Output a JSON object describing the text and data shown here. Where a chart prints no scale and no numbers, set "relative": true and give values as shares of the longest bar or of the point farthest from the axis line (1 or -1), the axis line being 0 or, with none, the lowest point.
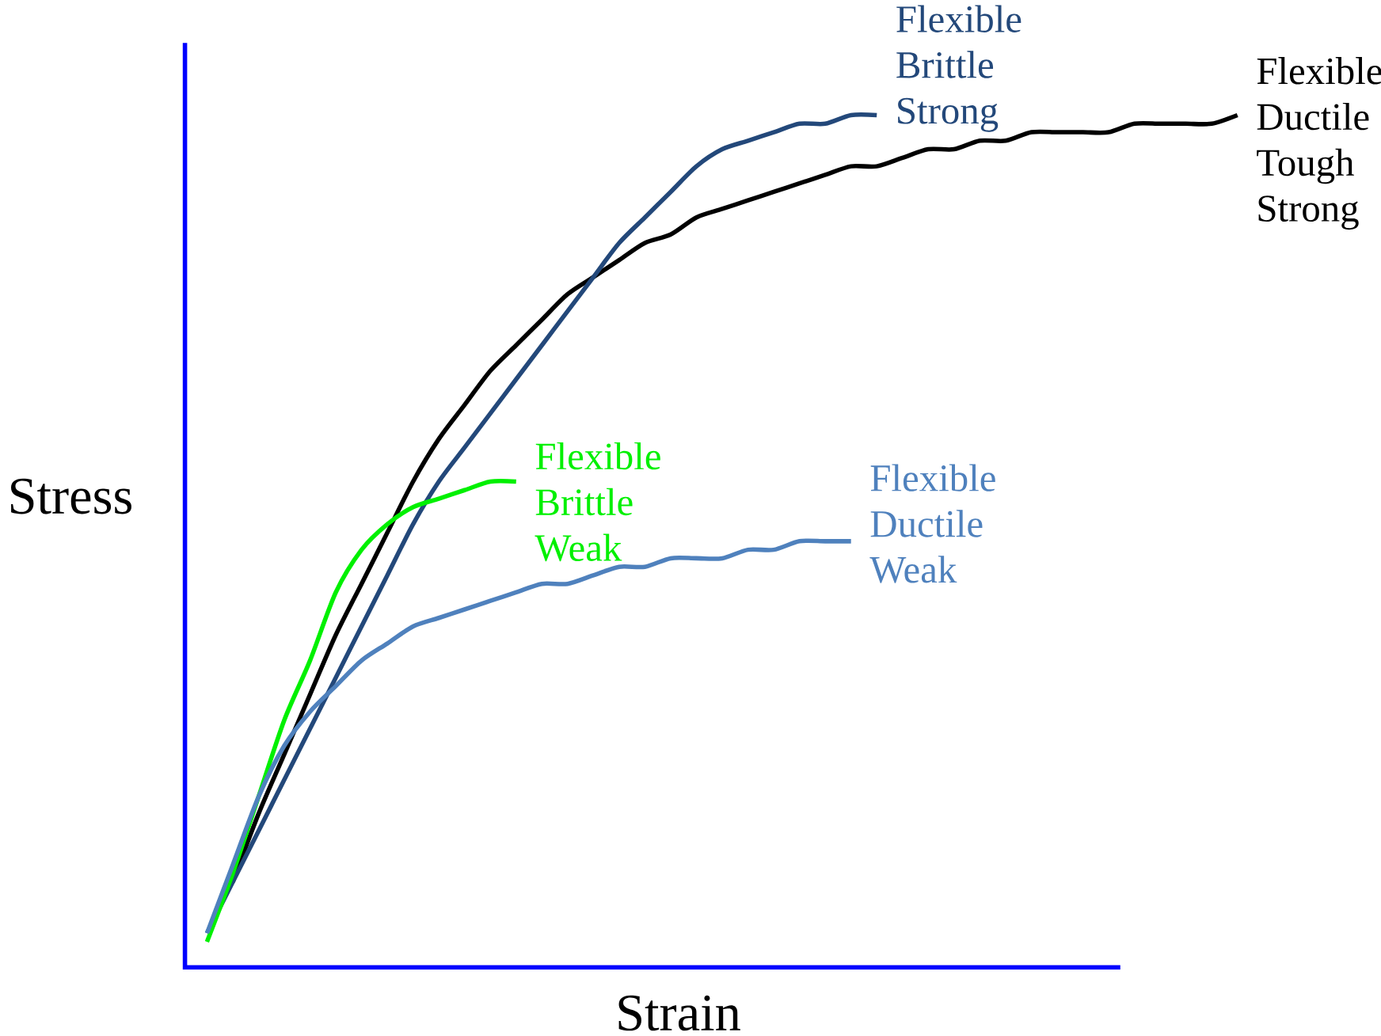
{
  "chart_data": {
    "type": "line",
    "relative": true,
    "xlabel": "Strain",
    "ylabel": "Stress",
    "categories": [
      null,
      null,
      null,
      null,
      null,
      null,
      null,
      null,
      null,
      null,
      null,
      null,
      null,
      null,
      null,
      null,
      null,
      null,
      null,
      null,
      null,
      null,
      null,
      null,
      null,
      null,
      null,
      null,
      null,
      null,
      null,
      null,
      null,
      null,
      null,
      null,
      null,
      null,
      null,
      null,
      null
    ],
    "series": [
      {
        "name": "Flexible Ductile Tough Strong",
        "color": "#000000",
        "values": [
          null,
          0.1,
          0.18,
          0.25,
          0.32,
          0.39,
          0.45,
          0.51,
          0.57,
          0.62,
          0.66,
          0.7,
          0.73,
          0.76,
          0.79,
          0.81,
          0.83,
          0.85,
          0.86,
          0.88,
          0.89,
          0.9,
          0.91,
          0.92,
          0.93,
          0.94,
          0.94,
          0.95,
          0.96,
          0.96,
          0.97,
          0.97,
          0.98,
          0.98,
          0.98,
          0.98,
          0.99,
          0.99,
          0.99,
          0.99,
          1.0
        ]
      },
      {
        "name": "Flexible Brittle Strong",
        "color": "#23487a",
        "values": [
          0.04,
          0.1,
          0.16,
          0.22,
          0.28,
          0.34,
          0.4,
          0.46,
          0.52,
          0.57,
          0.61,
          0.65,
          0.69,
          0.73,
          0.77,
          0.81,
          0.85,
          0.88,
          0.91,
          0.94,
          0.96,
          0.97,
          0.98,
          0.99,
          0.99,
          1.0,
          1.0,
          null,
          null,
          null,
          null,
          null,
          null,
          null,
          null,
          null,
          null,
          null,
          null,
          null,
          null
        ]
      },
      {
        "name": "Flexible Brittle Weak",
        "color": "#00f000",
        "values": [
          0.03,
          0.11,
          0.2,
          0.29,
          0.36,
          0.44,
          0.49,
          0.52,
          0.54,
          0.55,
          0.56,
          0.57,
          0.57,
          null,
          null,
          null,
          null,
          null,
          null,
          null,
          null,
          null,
          null,
          null,
          null,
          null,
          null,
          null,
          null,
          null,
          null,
          null,
          null,
          null,
          null,
          null,
          null,
          null,
          null,
          null,
          null
        ]
      },
      {
        "name": "Flexible Ductile Weak",
        "color": "#4f81bd",
        "values": [
          0.04,
          0.12,
          0.2,
          0.26,
          0.3,
          0.33,
          0.36,
          0.38,
          0.4,
          0.41,
          0.42,
          0.43,
          0.44,
          0.45,
          0.45,
          0.46,
          0.47,
          0.47,
          0.48,
          0.48,
          0.48,
          0.49,
          0.49,
          0.5,
          0.5,
          0.5,
          null,
          null,
          null,
          null,
          null,
          null,
          null,
          null,
          null,
          null,
          null,
          null,
          null,
          null,
          null
        ]
      }
    ]
  }
}
